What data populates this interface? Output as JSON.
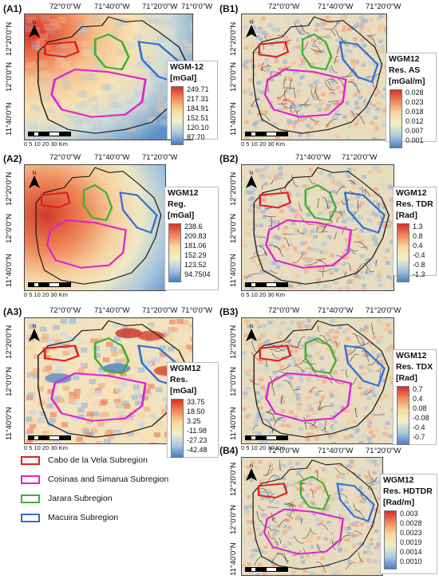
{
  "panels": {
    "A1": {
      "label": "(A1)",
      "lon": [
        "72°0'0\"W",
        "71°40'0\"W",
        "71°20'0\"W",
        "71°0'0\"W"
      ],
      "lat": [
        "12°20'0\"N",
        "12°0'0\"N",
        "11°40'0\"N"
      ],
      "legend_title": [
        "WGM-12",
        "[mGal]"
      ],
      "legend_values": [
        "249.71",
        "217.31",
        "184.91",
        "152.51",
        "120.10",
        "87.70"
      ],
      "scale_ticks": "0 5 10  20  30",
      "scale_unit": "Km",
      "style": "smooth_warm_nw"
    },
    "B1": {
      "label": "(B1)",
      "lon": [
        "72°0'0\"W",
        "71°40'0\"W",
        "71°20'0\"W"
      ],
      "lat": [
        "12°20'0\"N",
        "12°0'0\"N",
        "11°40'0\"N"
      ],
      "legend_title": [
        "WGM12",
        "Res. AS",
        "[mGal/m]"
      ],
      "legend_values": [
        "0.028",
        "0.023",
        "0.018",
        "0.012",
        "0.007",
        "0.001"
      ],
      "scale_ticks": "0 5 10  20  30",
      "scale_unit": "Km",
      "style": "texture"
    },
    "A2": {
      "label": "(A2)",
      "lon": [
        "72°0'0\"W",
        "71°40'0\"W",
        "71°20'0\"W"
      ],
      "lat": [
        "12°20'0\"N",
        "12°0'0\"N",
        "11°40'0\"N"
      ],
      "legend_title": [
        "WGM12",
        "Reg.",
        "[mGal]"
      ],
      "legend_values": [
        "238.6",
        "209.83",
        "181.06",
        "152.29",
        "123.52",
        "94.7504"
      ],
      "scale_ticks": "0 5 10  20  30",
      "scale_unit": "Km",
      "style": "smooth_regional"
    },
    "B2": {
      "label": "(B2)",
      "lon": [
        "71°40'0\"W",
        "71°20'0\"W"
      ],
      "lat": [
        "12°20'0\"N",
        "12°0'0\"N",
        "11°40'0\"N"
      ],
      "legend_title": [
        "WGM12",
        "Res. TDR",
        "[Rad]"
      ],
      "legend_values": [
        "1.3",
        "0.8",
        "0.4",
        "-0.4",
        "-0.8",
        "-1.3"
      ],
      "scale_ticks": "0 5 10  20  30",
      "scale_unit": "Km",
      "style": "texture"
    },
    "A3": {
      "label": "(A3)",
      "lon": [
        "72°0'0\"W",
        "71°40'0\"W",
        "71°20'0\"W",
        "71°0'0\"W"
      ],
      "lat": [
        "12°20'0\"N",
        "12°0'0\"N",
        "11°40'0\"N"
      ],
      "legend_title": [
        "WGM12",
        "Res.",
        "[mGal]"
      ],
      "legend_values": [
        "33.75",
        "18.50",
        "3.25",
        "-11.98",
        "-27.23",
        "-42.48"
      ],
      "scale_ticks": "0 5 10  20  30",
      "scale_unit": "Km",
      "style": "residual"
    },
    "B3": {
      "label": "(B3)",
      "lon": [
        "72°0'0\"W",
        "71°40'0\"W",
        "71°20'0\"W"
      ],
      "lat": [
        "12°20'0\"N",
        "12°0'0\"N",
        "11°40'0\"N"
      ],
      "legend_title": [
        "WGM12",
        "Res. TDX",
        "[Rad]"
      ],
      "legend_values": [
        "0.7",
        "0.4",
        "0.08",
        "-0.08",
        "-0.4",
        "-0.7"
      ],
      "scale_ticks": "0 5 10  20  30",
      "scale_unit": "Km",
      "style": "texture"
    },
    "B4": {
      "label": "(B4)",
      "lon": [
        "72°0'0\"W",
        "71°40'0\"W",
        "71°20'0\"W"
      ],
      "lat": [
        "12°20'0\"N",
        "12°0'0\"N",
        "11°40'0\"N"
      ],
      "legend_title": [
        "WGM12",
        "Res. HDTDR",
        "[Rad/m]"
      ],
      "legend_values": [
        "0.003",
        "0.0028",
        "0.0023",
        "0.0019",
        "0.0014",
        "0.0010"
      ],
      "scale_ticks": "0 5 10  20  30",
      "scale_unit": "Km",
      "style": "texture"
    }
  },
  "north_label": "N",
  "subregions": [
    {
      "name": "Cabo de la Vela Subregion",
      "color": "#e02020"
    },
    {
      "name": "Cosinas and Simarua Subregion",
      "color": "#e020d0"
    },
    {
      "name": "Jarara Subregion",
      "color": "#3cb034"
    },
    {
      "name": "Macuira Subregion",
      "color": "#2e6fd8"
    }
  ],
  "colors": {
    "ramp": [
      "#d7302a",
      "#f08a5a",
      "#f7d9a0",
      "#eef0c8",
      "#a9c8e0",
      "#4a7fbf"
    ],
    "outline": "#1a1a1a"
  }
}
